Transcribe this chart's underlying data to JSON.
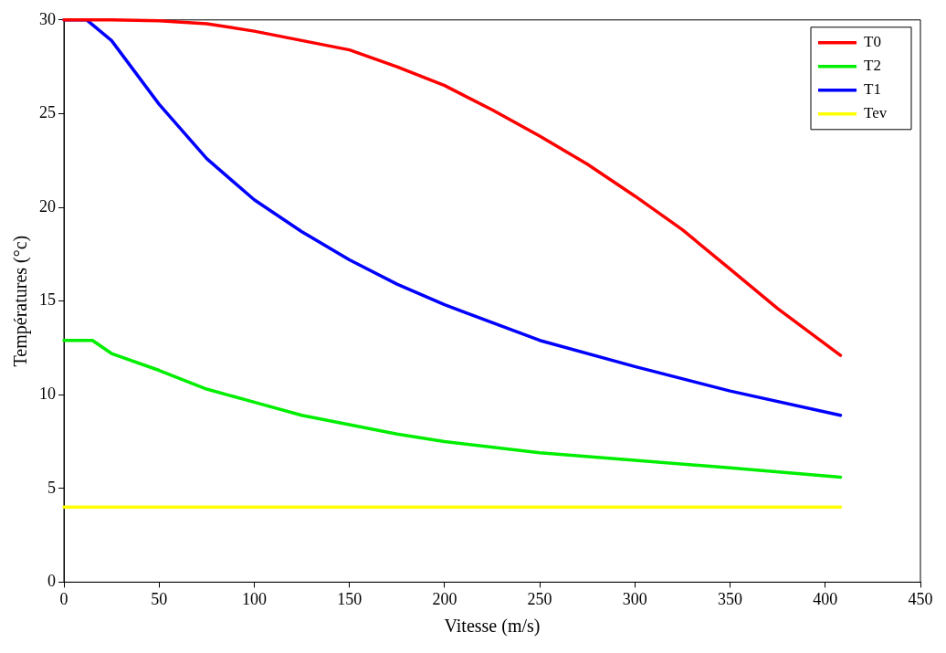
{
  "chart_data": {
    "type": "line",
    "xlabel": "Vitesse (m/s)",
    "ylabel": "Températures (°c)",
    "xlim": [
      0,
      450
    ],
    "xticks": [
      0,
      50,
      100,
      150,
      200,
      250,
      300,
      350,
      400,
      450
    ],
    "ylim": [
      0,
      30
    ],
    "yticks": [
      0,
      5,
      10,
      15,
      20,
      25,
      30
    ],
    "grid": false,
    "legend": "top right",
    "marker": "none",
    "line_style": "solid",
    "series": [
      {
        "name": "T0",
        "color": "#ff0000",
        "x": [
          0,
          25,
          50,
          75,
          100,
          125,
          150,
          175,
          200,
          225,
          250,
          275,
          300,
          325,
          350,
          375,
          408
        ],
        "values": [
          30,
          30,
          29.95,
          29.8,
          29.4,
          28.9,
          28.4,
          27.5,
          26.5,
          25.2,
          23.8,
          22.3,
          20.6,
          18.8,
          16.7,
          14.6,
          12.1
        ]
      },
      {
        "name": "T2",
        "color": "#00ee00",
        "x": [
          0,
          15,
          25,
          50,
          75,
          100,
          125,
          150,
          175,
          200,
          250,
          300,
          350,
          408
        ],
        "values": [
          12.9,
          12.9,
          12.2,
          11.3,
          10.3,
          9.6,
          8.9,
          8.4,
          7.9,
          7.5,
          6.9,
          6.5,
          6.1,
          5.6
        ]
      },
      {
        "name": "T1",
        "color": "#0000ff",
        "x": [
          0,
          12,
          25,
          50,
          75,
          100,
          125,
          150,
          175,
          200,
          250,
          300,
          350,
          408
        ],
        "values": [
          30,
          30,
          28.9,
          25.5,
          22.6,
          20.4,
          18.7,
          17.2,
          15.9,
          14.8,
          12.9,
          11.5,
          10.2,
          8.9
        ]
      },
      {
        "name": "Tev",
        "color": "#ffff00",
        "x": [
          0,
          408
        ],
        "values": [
          4,
          4
        ]
      }
    ]
  }
}
